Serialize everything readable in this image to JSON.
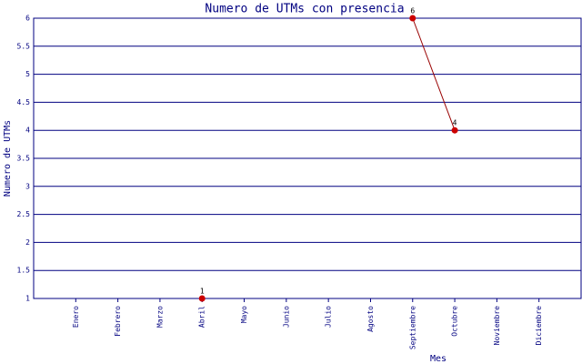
{
  "chart_data": {
    "type": "line",
    "title": "Numero de UTMs con presencia",
    "xlabel": "Mes",
    "ylabel": "Numero de UTMs",
    "categories": [
      "Enero",
      "Febrero",
      "Marzo",
      "Abril",
      "Mayo",
      "Junio",
      "Julio",
      "Agosto",
      "Septiembre",
      "Octubre",
      "Noviembre",
      "Diciembre"
    ],
    "values": [
      null,
      null,
      null,
      1,
      null,
      null,
      null,
      null,
      6,
      4,
      null,
      null
    ],
    "color": "#cc0000",
    "line_color": "#990000",
    "ylim": [
      1,
      6
    ],
    "yticks": [
      1,
      1.5,
      2,
      2.5,
      3,
      3.5,
      4,
      4.5,
      5,
      5.5,
      6
    ],
    "grid": true
  }
}
